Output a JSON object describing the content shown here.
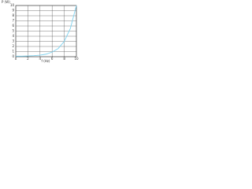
{
  "chart_data": {
    "type": "line",
    "title": "P (W)",
    "x_label": "f (Hz)",
    "x": [
      0,
      1,
      2,
      3,
      4,
      5,
      6,
      7,
      8,
      9,
      10
    ],
    "series": [
      {
        "name": "P",
        "color": "#7fd3f0",
        "values": [
          0.1,
          0.1,
          0.15,
          0.2,
          0.3,
          0.5,
          0.9,
          1.6,
          3,
          5.5,
          10
        ]
      }
    ],
    "xlim": [
      0,
      10
    ],
    "xticks": [
      0,
      2,
      4,
      6,
      8,
      10
    ],
    "ylim": [
      0,
      10
    ],
    "yticks": [
      0,
      1,
      2,
      3,
      4,
      5,
      6,
      7,
      8,
      9,
      10
    ],
    "grid": true
  }
}
